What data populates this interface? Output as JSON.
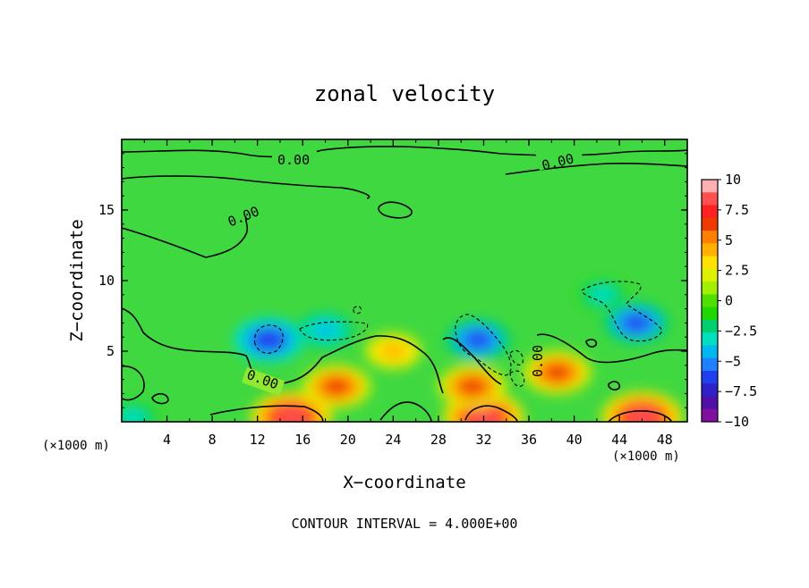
{
  "chart_data": {
    "type": "heatmap",
    "title": "zonal velocity",
    "xlabel": "X−coordinate",
    "ylabel": "Z−coordinate",
    "x_unit": "(×1000 m)",
    "z_unit": "(×1000 m)",
    "xlim": [
      0,
      50
    ],
    "ylim": [
      0,
      20
    ],
    "x_ticks": [
      4,
      8,
      12,
      16,
      20,
      24,
      28,
      32,
      36,
      40,
      44,
      48
    ],
    "y_ticks": [
      5,
      10,
      15
    ],
    "colorbar": {
      "ticks": [
        "10",
        "7.5",
        "5",
        "2.5",
        "0",
        "−2.5",
        "−5",
        "−7.5",
        "−10"
      ],
      "range": [
        -10,
        10
      ],
      "colors": [
        "#ffb0b0",
        "#ff5050",
        "#ff2020",
        "#ee3a00",
        "#ff8000",
        "#ffb000",
        "#ffe000",
        "#ddf000",
        "#a0f000",
        "#50e000",
        "#20d800",
        "#00d070",
        "#00e0c0",
        "#00b8f0",
        "#2080ff",
        "#2040f0",
        "#3020c8",
        "#5010a8",
        "#8010a0"
      ]
    },
    "contour_labels": [
      "0.00",
      "0.00",
      "0.00",
      "0.00",
      "0.00"
    ],
    "footer": "CONTOUR INTERVAL = 4.000E+00",
    "features": [
      {
        "kind": "max",
        "x": 15,
        "z": 0.3,
        "value": 10
      },
      {
        "kind": "max",
        "x": 32,
        "z": 0.3,
        "value": 10
      },
      {
        "kind": "max",
        "x": 46,
        "z": 0.3,
        "value": 10
      },
      {
        "kind": "max",
        "x": 19,
        "z": 2.5,
        "value": 7.5
      },
      {
        "kind": "max",
        "x": 31,
        "z": 2.5,
        "value": 7.5
      },
      {
        "kind": "max",
        "x": 38.5,
        "z": 3.5,
        "value": 7.5
      },
      {
        "kind": "max",
        "x": 24,
        "z": 5.0,
        "value": 5
      },
      {
        "kind": "min",
        "x": 13,
        "z": 5.8,
        "value": -8
      },
      {
        "kind": "min",
        "x": 18,
        "z": 6.5,
        "value": -5
      },
      {
        "kind": "min",
        "x": 31.5,
        "z": 5.8,
        "value": -7
      },
      {
        "kind": "min",
        "x": 45.5,
        "z": 7.0,
        "value": -7
      },
      {
        "kind": "min",
        "x": 42.5,
        "z": 9.0,
        "value": -4
      },
      {
        "kind": "min",
        "x": 1,
        "z": 0.3,
        "value": -4
      }
    ]
  }
}
